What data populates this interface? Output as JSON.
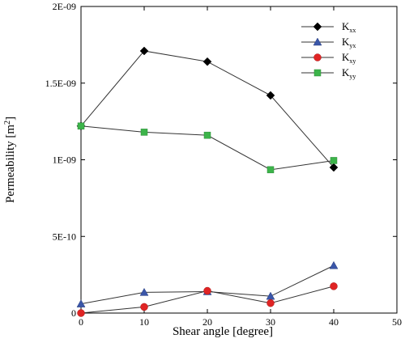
{
  "chart_data": {
    "type": "line",
    "title": "",
    "xlabel": "Shear angle [degree]",
    "ylabel_main": "Permeability [m",
    "ylabel_sup": "2",
    "ylabel_end": "]",
    "xlim": [
      0,
      50
    ],
    "ylim": [
      0,
      2e-09
    ],
    "x_ticks": [
      0,
      10,
      20,
      30,
      40,
      50
    ],
    "x_tick_labels": [
      "0",
      "10",
      "20",
      "30",
      "40",
      "50"
    ],
    "y_ticks": [
      0,
      5e-10,
      1e-09,
      1.5e-09,
      2e-09
    ],
    "y_tick_labels": [
      "0",
      "5E-10",
      "1E-09",
      "1.5E-09",
      "2E-09"
    ],
    "grid": false,
    "legend_position": "top-right",
    "x": [
      0,
      10,
      20,
      30,
      40
    ],
    "series": [
      {
        "name": "K",
        "sub": "xx",
        "marker": "diamond",
        "color": "#000000",
        "values": [
          1.22e-09,
          1.71e-09,
          1.64e-09,
          1.42e-09,
          9.5e-10
        ]
      },
      {
        "name": "K",
        "sub": "yx",
        "marker": "triangle",
        "color": "#3a56a8",
        "values": [
          6e-11,
          1.35e-10,
          1.4e-10,
          1.1e-10,
          3.1e-10
        ]
      },
      {
        "name": "K",
        "sub": "xy",
        "marker": "circle",
        "color": "#e02424",
        "values": [
          0.0,
          4e-11,
          1.45e-10,
          6.5e-11,
          1.75e-10
        ]
      },
      {
        "name": "K",
        "sub": "yy",
        "marker": "square",
        "color": "#3cb44a",
        "values": [
          1.22e-09,
          1.18e-09,
          1.16e-09,
          9.35e-10,
          9.95e-10
        ]
      }
    ]
  }
}
